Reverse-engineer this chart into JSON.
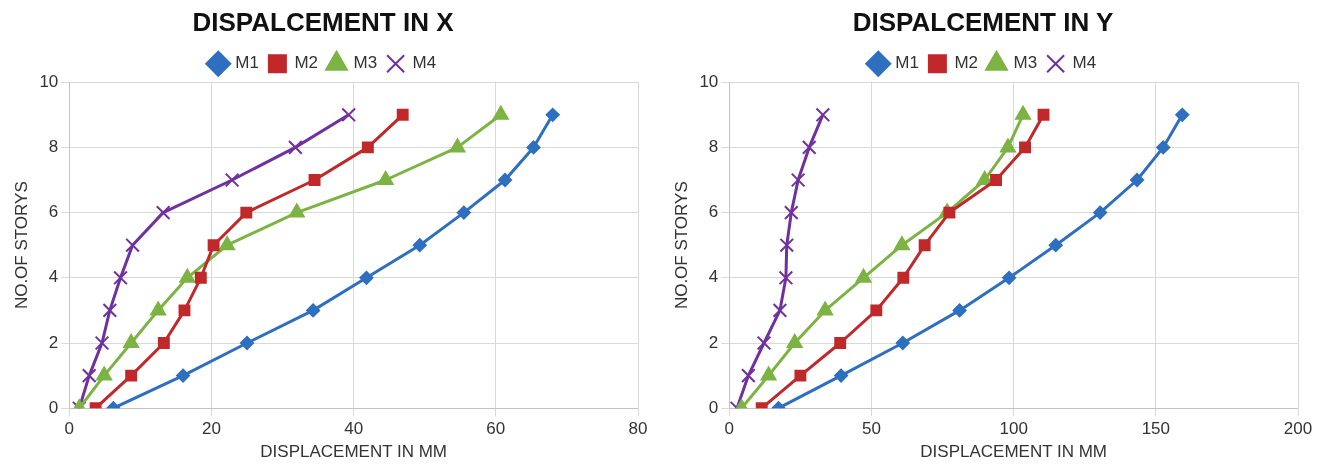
{
  "chart_data": [
    {
      "type": "line",
      "title": "DISPALCEMENT IN X",
      "xlabel": "DISPLACEMENT IN MM",
      "ylabel": "NO.OF STORYS",
      "xlim": [
        0,
        80
      ],
      "xticks": [
        0,
        20,
        40,
        60,
        80
      ],
      "ylim": [
        0,
        10
      ],
      "yticks": [
        0,
        2,
        4,
        6,
        8,
        10
      ],
      "grid": true,
      "legend": "top",
      "series": [
        {
          "name": "M1",
          "color": "#2e6fc0",
          "marker": "diamond",
          "x": [
            6.2,
            16,
            25,
            34.3,
            41.8,
            49.3,
            55.5,
            61.3,
            65.3,
            68
          ],
          "values": [
            0,
            1,
            2,
            3,
            4,
            5,
            6,
            7,
            8,
            9
          ]
        },
        {
          "name": "M2",
          "color": "#c0282a",
          "marker": "square",
          "x": [
            3.7,
            8.7,
            13.3,
            16.2,
            18.5,
            20.3,
            24.9,
            34.5,
            42,
            46.9
          ],
          "values": [
            0,
            1,
            2,
            3,
            4,
            5,
            6,
            7,
            8,
            9
          ]
        },
        {
          "name": "M3",
          "color": "#7cb342",
          "marker": "triangle",
          "x": [
            1.4,
            4.9,
            8.7,
            12.5,
            16.6,
            22.2,
            32,
            44.5,
            54.6,
            60.7
          ],
          "values": [
            0,
            1,
            2,
            3,
            4,
            5,
            6,
            7,
            8,
            9
          ]
        },
        {
          "name": "M4",
          "color": "#7030a0",
          "marker": "cross",
          "x": [
            1.4,
            2.8,
            4.6,
            5.7,
            7.2,
            8.9,
            13.2,
            22.9,
            31.8,
            39.3
          ],
          "values": [
            0,
            1,
            2,
            3,
            4,
            5,
            6,
            7,
            8,
            9
          ]
        }
      ]
    },
    {
      "type": "line",
      "title": "DISPALCEMENT IN Y",
      "xlabel": "DISPLACEMENT IN MM",
      "ylabel": "NO.OF STORYS",
      "xlim": [
        0,
        200
      ],
      "xticks": [
        0,
        50,
        100,
        150,
        200
      ],
      "ylim": [
        0,
        10
      ],
      "yticks": [
        0,
        2,
        4,
        6,
        8,
        10
      ],
      "grid": true,
      "legend": "top",
      "series": [
        {
          "name": "M1",
          "color": "#2e6fc0",
          "marker": "diamond",
          "x": [
            17.3,
            39.3,
            61,
            81,
            98.4,
            114.8,
            130.4,
            143.4,
            152.6,
            159.3
          ],
          "values": [
            0,
            1,
            2,
            3,
            4,
            5,
            6,
            7,
            8,
            9
          ]
        },
        {
          "name": "M2",
          "color": "#c0282a",
          "marker": "square",
          "x": [
            11.4,
            25,
            39,
            51.7,
            61.2,
            68.7,
            77.4,
            93.8,
            104,
            110.5
          ],
          "values": [
            0,
            1,
            2,
            3,
            4,
            5,
            6,
            7,
            8,
            9
          ]
        },
        {
          "name": "M3",
          "color": "#7cb342",
          "marker": "triangle",
          "x": [
            4.3,
            13.8,
            23,
            33.7,
            47.2,
            60.7,
            76.6,
            89.8,
            98,
            103.3
          ],
          "values": [
            0,
            1,
            2,
            3,
            4,
            5,
            6,
            7,
            8,
            9
          ]
        },
        {
          "name": "M4",
          "color": "#7030a0",
          "marker": "cross",
          "x": [
            2.7,
            6.7,
            12.2,
            17.8,
            19.9,
            20.2,
            21.8,
            24.2,
            28.1,
            32.9
          ],
          "values": [
            0,
            1,
            2,
            3,
            4,
            5,
            6,
            7,
            8,
            9
          ]
        }
      ]
    }
  ]
}
